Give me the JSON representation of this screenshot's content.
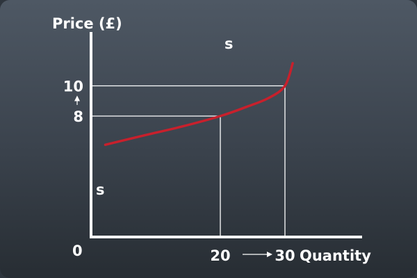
{
  "chart_data": {
    "type": "line",
    "title": "",
    "ylabel": "Price (£)",
    "xlabel": "Quantity",
    "origin_label": "0",
    "xlim": [
      0,
      35
    ],
    "ylim": [
      0,
      12
    ],
    "x_ticks": [
      {
        "value": 20,
        "label": "20"
      },
      {
        "value": 30,
        "label": "30"
      }
    ],
    "y_ticks": [
      {
        "value": 8,
        "label": "8"
      },
      {
        "value": 10,
        "label": "10"
      }
    ],
    "series": [
      {
        "name": "s",
        "color": "#c8202c",
        "x": [
          2.2,
          8,
          14,
          20,
          24,
          27.5,
          30,
          31.2
        ],
        "y": [
          6.1,
          6.7,
          7.3,
          8.0,
          8.6,
          9.2,
          10.0,
          11.5
        ]
      }
    ],
    "curve_labels": [
      "s",
      "s"
    ],
    "reference_points": [
      {
        "x": 20,
        "y": 8
      },
      {
        "x": 30,
        "y": 10
      }
    ],
    "annotations": [
      {
        "type": "arrow",
        "direction": "up",
        "from": 8,
        "to": 10,
        "axis": "y"
      },
      {
        "type": "arrow",
        "direction": "right",
        "from": 20,
        "to": 30,
        "axis": "x"
      }
    ],
    "grid": false,
    "legend": "none"
  },
  "colors": {
    "axis": "#ffffff",
    "guide": "#ffffff",
    "curve": "#c8202c",
    "text": "#ffffff"
  }
}
